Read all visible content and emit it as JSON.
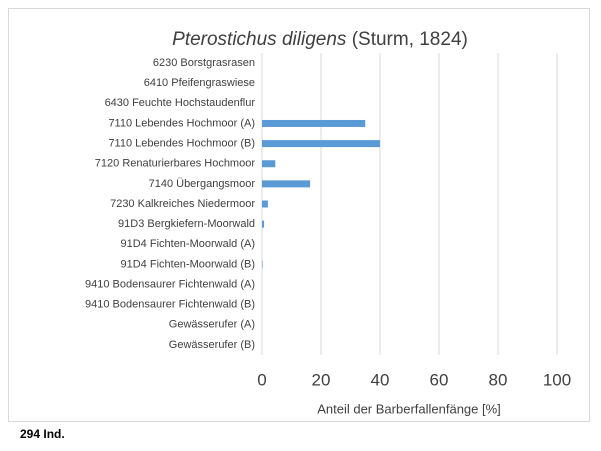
{
  "chart_data": {
    "type": "bar",
    "orientation": "horizontal",
    "title_parts": [
      "Pterostichus diligens",
      "(Sturm, 1824)"
    ],
    "categories": [
      "6230 Borstgrasrasen",
      "6410 Pfeifengraswiese",
      "6430 Feuchte Hochstaudenflur",
      "7110 Lebendes Hochmoor (A)",
      "7110 Lebendes Hochmoor (B)",
      "7120 Renaturierbares Hochmoor",
      "7140 Übergangsmoor",
      "7230 Kalkreiches Niedermoor",
      "91D3 Bergkiefern-Moorwald",
      "91D4 Fichten-Moorwald (A)",
      "91D4 Fichten-Moorwald (B)",
      "9410 Bodensaurer Fichtenwald (A)",
      "9410 Bodensaurer Fichtenwald (B)",
      "Gewässerufer (A)",
      "Gewässerufer (B)"
    ],
    "values": [
      0,
      0,
      0,
      35,
      40,
      4.5,
      16.3,
      2,
      0.7,
      0,
      0.2,
      0,
      0,
      0,
      0
    ],
    "color": "#5b9bd5",
    "xlim": [
      0,
      100
    ],
    "xticks": [
      0,
      20,
      40,
      60,
      80,
      100
    ],
    "grid": true,
    "xlabel": "Anteil der Barberfallenfänge [%]",
    "note": "294 Ind."
  }
}
